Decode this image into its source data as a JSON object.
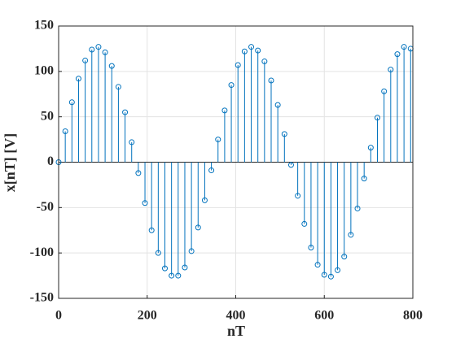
{
  "chart_data": {
    "type": "stem",
    "xlabel": "nT",
    "ylabel": "x[nT] [V]",
    "x": [
      0,
      15,
      30,
      45,
      60,
      75,
      90,
      105,
      120,
      135,
      150,
      165,
      180,
      195,
      210,
      225,
      240,
      255,
      270,
      285,
      300,
      315,
      330,
      345,
      360,
      375,
      390,
      405,
      420,
      435,
      450,
      465,
      480,
      495,
      510,
      525,
      540,
      555,
      570,
      585,
      600,
      615,
      630,
      645,
      660,
      675,
      690,
      705,
      720,
      735,
      750,
      765,
      780,
      795
    ],
    "values": [
      0,
      34,
      66,
      92,
      112,
      124,
      127,
      121,
      106,
      83,
      55,
      22,
      -12,
      -45,
      -75,
      -100,
      -117,
      -125,
      -125,
      -116,
      -98,
      -72,
      -42,
      -9,
      25,
      57,
      85,
      107,
      122,
      127,
      123,
      111,
      90,
      63,
      31,
      -3,
      -37,
      -68,
      -94,
      -113,
      -124,
      -126,
      -119,
      -104,
      -80,
      -51,
      -18,
      16,
      49,
      78,
      102,
      119,
      127,
      125
    ],
    "color": "#0072bd",
    "xlim": [
      0,
      800
    ],
    "xticks": [
      0,
      200,
      400,
      600,
      800
    ],
    "ylim": [
      -150,
      150
    ],
    "yticks": [
      -150,
      -100,
      -50,
      0,
      50,
      100,
      150
    ],
    "grid": true
  }
}
